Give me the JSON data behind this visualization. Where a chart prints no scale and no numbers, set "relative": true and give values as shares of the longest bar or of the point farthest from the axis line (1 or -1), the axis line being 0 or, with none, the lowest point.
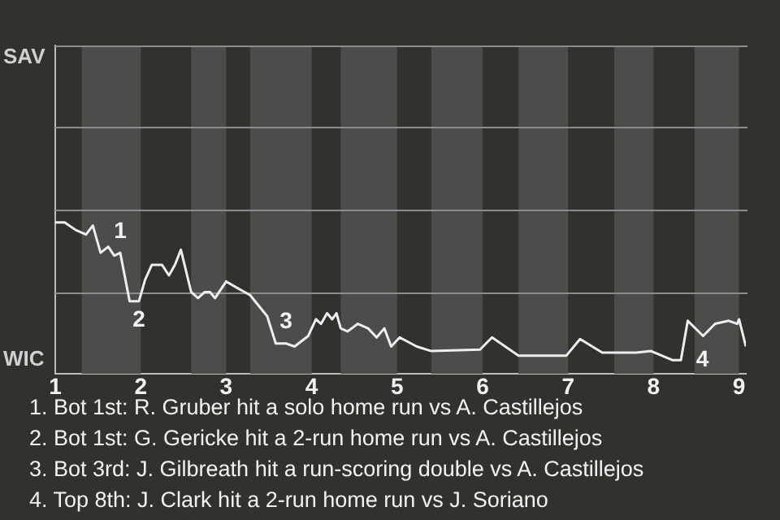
{
  "chart_data": {
    "type": "line",
    "marker": "none",
    "legend": false,
    "relative": true,
    "ref_lines": [
      {
        "axis": "y",
        "value": 0.54,
        "color": "#8c8c8c"
      },
      {
        "axis": "y",
        "value": 1.09,
        "color": "#8c8c8c"
      },
      {
        "axis": "y",
        "value": 1.63,
        "color": "#8c8c8c"
      },
      {
        "axis": "y",
        "value": 2.17,
        "color": "#8c8c8c"
      }
    ],
    "xlim": [
      1,
      9.08
    ],
    "xticks": [
      1,
      2,
      3,
      4,
      5,
      6,
      7,
      8,
      9
    ],
    "bands": [
      {
        "axis": "x",
        "from": 1.31,
        "to": 2,
        "color": "#4d4c4a"
      },
      {
        "axis": "x",
        "from": 2.59,
        "to": 3,
        "color": "#4d4c4a"
      },
      {
        "axis": "x",
        "from": 3.28,
        "to": 4,
        "color": "#4d4c4a"
      },
      {
        "axis": "x",
        "from": 4.34,
        "to": 5,
        "color": "#4d4c4a"
      },
      {
        "axis": "x",
        "from": 5.4,
        "to": 6,
        "color": "#4d4c4a"
      },
      {
        "axis": "x",
        "from": 6.42,
        "to": 7,
        "color": "#4d4c4a"
      },
      {
        "axis": "x",
        "from": 7.54,
        "to": 8,
        "color": "#4d4c4a"
      },
      {
        "axis": "x",
        "from": 8.48,
        "to": 9,
        "color": "#4d4c4a"
      }
    ],
    "series": [
      {
        "color": "#eeeeee",
        "x": [
          1,
          1.11,
          1.24,
          1.36,
          1.44,
          1.53,
          1.62,
          1.69,
          1.76,
          1.87,
          1.98,
          2.05,
          2.13,
          2.25,
          2.33,
          2.4,
          2.47,
          2.59,
          2.67,
          2.75,
          2.81,
          2.87,
          3,
          3.12,
          3.28,
          3.48,
          3.58,
          3.7,
          3.8,
          3.96,
          4.05,
          4.11,
          4.18,
          4.24,
          4.29,
          4.34,
          4.42,
          4.54,
          4.66,
          4.76,
          4.85,
          4.93,
          5.03,
          5.23,
          5.4,
          5.97,
          6.11,
          6.42,
          6.98,
          7.14,
          7.4,
          7.8,
          7.97,
          8.22,
          8.32,
          8.4,
          8.58,
          8.72,
          8.88,
          8.98,
          9,
          9.08
        ],
        "values": [
          1,
          1,
          0.95,
          0.92,
          0.98,
          0.8,
          0.84,
          0.78,
          0.8,
          0.48,
          0.48,
          0.62,
          0.72,
          0.72,
          0.65,
          0.72,
          0.82,
          0.54,
          0.5,
          0.54,
          0.54,
          0.5,
          0.61,
          0.57,
          0.52,
          0.38,
          0.2,
          0.2,
          0.18,
          0.25,
          0.36,
          0.33,
          0.4,
          0.36,
          0.4,
          0.3,
          0.28,
          0.33,
          0.3,
          0.24,
          0.3,
          0.18,
          0.24,
          0.18,
          0.15,
          0.16,
          0.24,
          0.12,
          0.12,
          0.23,
          0.14,
          0.14,
          0.15,
          0.09,
          0.09,
          0.35,
          0.25,
          0.33,
          0.35,
          0.33,
          0.36,
          0.18
        ]
      }
    ],
    "annotations": [
      "SAV",
      "WIC",
      {
        "text": "1",
        "x": 1.76,
        "y": 0.8
      },
      {
        "text": "2",
        "x": 1.98,
        "y": 0.48
      },
      {
        "text": "3",
        "x": 3.7,
        "y": 0.2
      },
      {
        "text": "4",
        "x": 8.4,
        "y": 0.09
      },
      "1. Bot 1st: R. Gruber hit a solo home run vs A. Castillejos",
      "2. Bot 1st: G. Gericke hit a 2-run home run vs A. Castillejos",
      "3. Bot 3rd: J. Gilbreath hit a run-scoring double vs A. Castillejos",
      "4. Top 8th: J. Clark hit a 2-run home run vs J. Soriano"
    ]
  }
}
